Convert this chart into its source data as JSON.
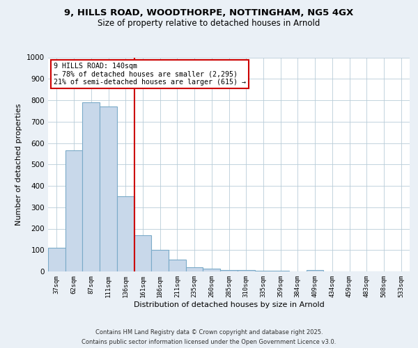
{
  "title_line1": "9, HILLS ROAD, WOODTHORPE, NOTTINGHAM, NG5 4GX",
  "title_line2": "Size of property relative to detached houses in Arnold",
  "xlabel": "Distribution of detached houses by size in Arnold",
  "ylabel": "Number of detached properties",
  "categories": [
    "37sqm",
    "62sqm",
    "87sqm",
    "111sqm",
    "136sqm",
    "161sqm",
    "186sqm",
    "211sqm",
    "235sqm",
    "260sqm",
    "285sqm",
    "310sqm",
    "335sqm",
    "359sqm",
    "384sqm",
    "409sqm",
    "434sqm",
    "459sqm",
    "483sqm",
    "508sqm",
    "533sqm"
  ],
  "values": [
    110,
    565,
    790,
    770,
    350,
    170,
    100,
    55,
    18,
    13,
    8,
    5,
    4,
    2,
    1,
    5,
    1,
    1,
    1,
    1,
    1
  ],
  "bar_color": "#c8d8ea",
  "bar_edge_color": "#7aaac8",
  "red_line_index": 4,
  "red_line_color": "#cc0000",
  "annotation_title": "9 HILLS ROAD: 140sqm",
  "annotation_line1": "← 78% of detached houses are smaller (2,295)",
  "annotation_line2": "21% of semi-detached houses are larger (615) →",
  "annotation_box_facecolor": "#ffffff",
  "annotation_box_edgecolor": "#cc0000",
  "background_color": "#eaf0f6",
  "plot_bg_color": "#ffffff",
  "ylim": [
    0,
    1000
  ],
  "yticks": [
    0,
    100,
    200,
    300,
    400,
    500,
    600,
    700,
    800,
    900,
    1000
  ],
  "footer1": "Contains HM Land Registry data © Crown copyright and database right 2025.",
  "footer2": "Contains public sector information licensed under the Open Government Licence v3.0."
}
